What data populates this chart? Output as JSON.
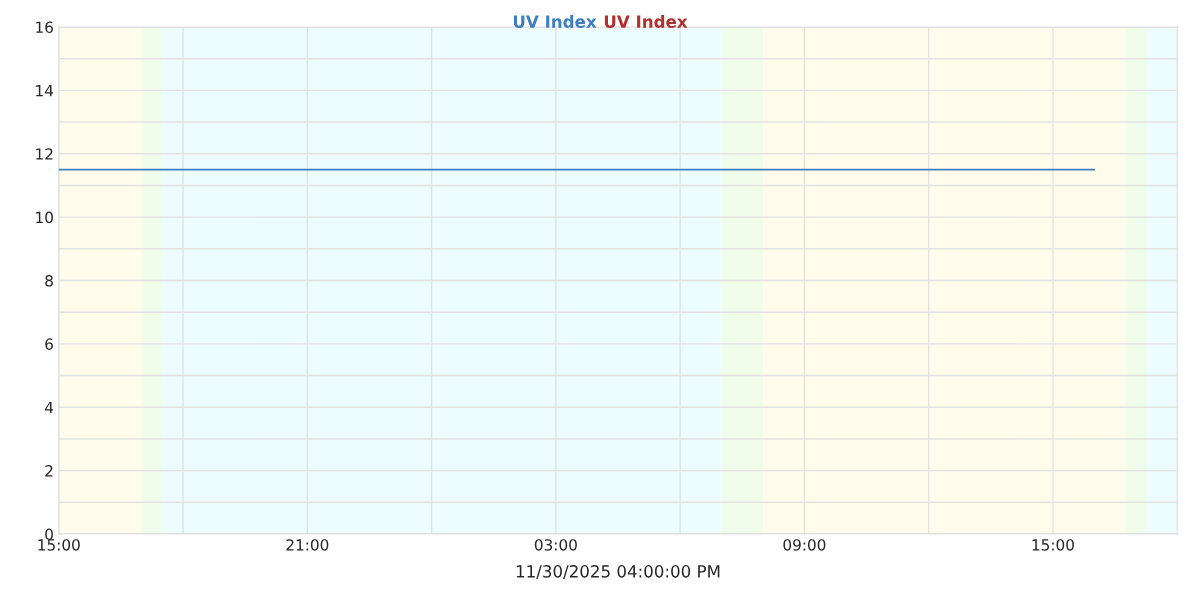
{
  "chart_data": {
    "type": "line",
    "xlabel": "11/30/2025 04:00:00 PM",
    "series": [
      {
        "name": "UV Index",
        "color": "#3f7fbf",
        "x": [
          "2025-11-29T15:00",
          "2025-11-30T16:00"
        ],
        "values": [
          11.5,
          11.5
        ]
      },
      {
        "name": "UV Index",
        "color": "#b03030"
      }
    ],
    "xlim": [
      "2025-11-29T15:00",
      "2025-11-30T18:00"
    ],
    "xticks": [
      {
        "value": "2025-11-29T15:00",
        "label": "15:00"
      },
      {
        "value": "2025-11-29T18:00",
        "label": null
      },
      {
        "value": "2025-11-29T21:00",
        "label": "21:00"
      },
      {
        "value": "2025-11-30T00:00",
        "label": null
      },
      {
        "value": "2025-11-30T03:00",
        "label": "03:00"
      },
      {
        "value": "2025-11-30T06:00",
        "label": null
      },
      {
        "value": "2025-11-30T09:00",
        "label": "09:00"
      },
      {
        "value": "2025-11-30T12:00",
        "label": null
      },
      {
        "value": "2025-11-30T15:00",
        "label": "15:00"
      }
    ],
    "ylim": [
      0,
      16
    ],
    "yticks": [
      0,
      {
        "value": 1,
        "label": null
      },
      2,
      {
        "value": 3,
        "label": null
      },
      4,
      {
        "value": 5,
        "label": null
      },
      6,
      {
        "value": 7,
        "label": null
      },
      8,
      {
        "value": 9,
        "label": null
      },
      10,
      {
        "value": 11,
        "label": null
      },
      12,
      {
        "value": 13,
        "label": null
      },
      14,
      {
        "value": 15,
        "label": null
      },
      16
    ],
    "bands": [
      {
        "axis": "x",
        "from": "2025-11-29T15:00",
        "to": "2025-11-29T17:00",
        "color": "#fffcec"
      },
      {
        "axis": "x",
        "from": "2025-11-29T17:00",
        "to": "2025-11-29T17:30",
        "color": "#effdea"
      },
      {
        "axis": "x",
        "from": "2025-11-29T17:30",
        "to": "2025-11-30T07:00",
        "color": "#edfcfc"
      },
      {
        "axis": "x",
        "from": "2025-11-30T07:00",
        "to": "2025-11-30T08:00",
        "color": "#effdea"
      },
      {
        "axis": "x",
        "from": "2025-11-30T08:00",
        "to": "2025-11-30T16:45",
        "color": "#fffcec"
      },
      {
        "axis": "x",
        "from": "2025-11-30T16:45",
        "to": "2025-11-30T17:15",
        "color": "#effdea"
      },
      {
        "axis": "x",
        "from": "2025-11-30T17:15",
        "to": "2025-11-30T18:00",
        "color": "#edfcfc"
      }
    ],
    "grid": true,
    "legend": "top",
    "line_style": "solid",
    "marker": "none"
  }
}
